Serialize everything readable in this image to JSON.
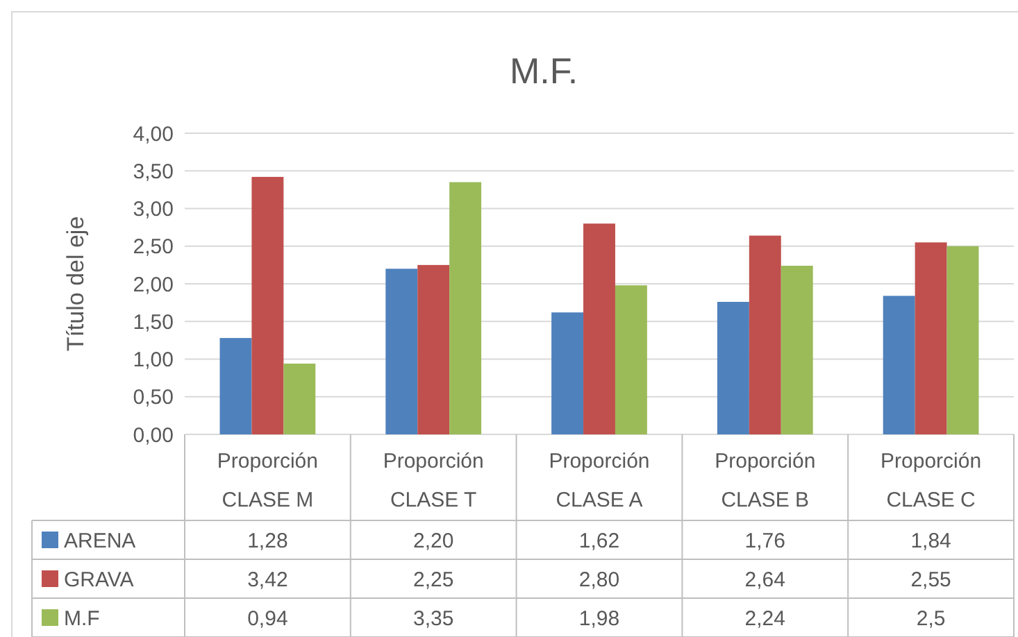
{
  "chart_data": {
    "type": "bar",
    "title": "M.F.",
    "ylabel": "Título del eje",
    "categories": [
      "Proporción CLASE M",
      "Proporción CLASE T",
      "Proporción CLASE A",
      "Proporción CLASE B",
      "Proporción CLASE C"
    ],
    "series": [
      {
        "name": "ARENA",
        "color": "#4f81bd",
        "values": [
          1.28,
          2.2,
          1.62,
          1.76,
          1.84
        ],
        "value_labels": [
          "1,28",
          "2,20",
          "1,62",
          "1,76",
          "1,84"
        ]
      },
      {
        "name": "GRAVA",
        "color": "#c0504d",
        "values": [
          3.42,
          2.25,
          2.8,
          2.64,
          2.55
        ],
        "value_labels": [
          "3,42",
          "2,25",
          "2,80",
          "2,64",
          "2,55"
        ]
      },
      {
        "name": "M.F",
        "color": "#9bbb59",
        "values": [
          0.94,
          3.35,
          1.98,
          2.24,
          2.5
        ],
        "value_labels": [
          "0,94",
          "3,35",
          "1,98",
          "2,24",
          "2,5"
        ]
      }
    ],
    "ylim": [
      0,
      4
    ],
    "yticks": [
      {
        "value": 0,
        "label": "0,00"
      },
      {
        "value": 0.5,
        "label": "0,50"
      },
      {
        "value": 1,
        "label": "1,00"
      },
      {
        "value": 1.5,
        "label": "1,50"
      },
      {
        "value": 2,
        "label": "2,00"
      },
      {
        "value": 2.5,
        "label": "2,50"
      },
      {
        "value": 3,
        "label": "3,00"
      },
      {
        "value": 3.5,
        "label": "3,50"
      },
      {
        "value": 4,
        "label": "4,00"
      }
    ],
    "grid": "y",
    "legend": "bottom"
  }
}
